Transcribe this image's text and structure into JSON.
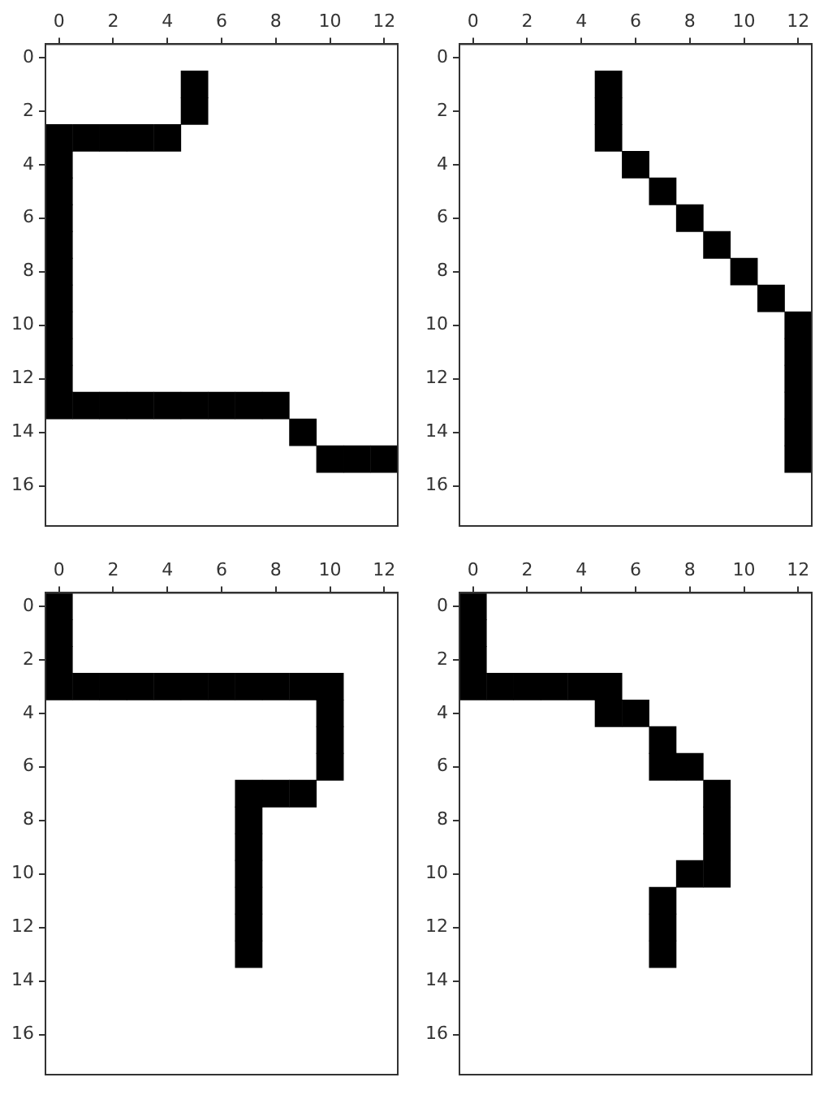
{
  "chart_data": [
    {
      "type": "scatter",
      "marker": "square",
      "color": "#000000",
      "xlim": [
        -0.5,
        12.5
      ],
      "ylim": [
        17.5,
        -0.5
      ],
      "xticks": [
        0,
        2,
        4,
        6,
        8,
        10,
        12
      ],
      "yticks": [
        0,
        2,
        4,
        6,
        8,
        10,
        12,
        14,
        16
      ],
      "x": [
        5,
        5,
        0,
        1,
        2,
        3,
        4,
        0,
        0,
        0,
        0,
        0,
        0,
        0,
        0,
        0,
        0,
        1,
        2,
        3,
        4,
        5,
        6,
        7,
        8,
        9,
        10,
        11,
        12
      ],
      "values": [
        1,
        2,
        3,
        3,
        3,
        3,
        3,
        4,
        5,
        6,
        7,
        8,
        9,
        10,
        11,
        12,
        13,
        13,
        13,
        13,
        13,
        13,
        13,
        13,
        13,
        14,
        15,
        15,
        15
      ]
    },
    {
      "type": "scatter",
      "marker": "square",
      "color": "#000000",
      "xlim": [
        -0.5,
        12.5
      ],
      "ylim": [
        17.5,
        -0.5
      ],
      "xticks": [
        0,
        2,
        4,
        6,
        8,
        10,
        12
      ],
      "yticks": [
        0,
        2,
        4,
        6,
        8,
        10,
        12,
        14,
        16
      ],
      "x": [
        5,
        5,
        5,
        6,
        7,
        8,
        9,
        10,
        11,
        12,
        12,
        12,
        12,
        12,
        12
      ],
      "values": [
        1,
        2,
        3,
        4,
        5,
        6,
        7,
        8,
        9,
        10,
        11,
        12,
        13,
        14,
        15
      ]
    },
    {
      "type": "scatter",
      "marker": "square",
      "color": "#000000",
      "xlim": [
        -0.5,
        12.5
      ],
      "ylim": [
        17.5,
        -0.5
      ],
      "xticks": [
        0,
        2,
        4,
        6,
        8,
        10,
        12
      ],
      "yticks": [
        0,
        2,
        4,
        6,
        8,
        10,
        12,
        14,
        16
      ],
      "x": [
        0,
        0,
        0,
        0,
        1,
        2,
        3,
        4,
        5,
        6,
        7,
        8,
        9,
        10,
        10,
        10,
        10,
        7,
        8,
        9,
        7,
        7,
        7,
        7,
        7,
        7
      ],
      "values": [
        0,
        1,
        2,
        3,
        3,
        3,
        3,
        3,
        3,
        3,
        3,
        3,
        3,
        3,
        4,
        5,
        6,
        7,
        7,
        7,
        8,
        9,
        10,
        11,
        12,
        13
      ]
    },
    {
      "type": "scatter",
      "marker": "square",
      "color": "#000000",
      "xlim": [
        -0.5,
        12.5
      ],
      "ylim": [
        17.5,
        -0.5
      ],
      "xticks": [
        0,
        2,
        4,
        6,
        8,
        10,
        12
      ],
      "yticks": [
        0,
        2,
        4,
        6,
        8,
        10,
        12,
        14,
        16
      ],
      "x": [
        0,
        0,
        0,
        0,
        1,
        2,
        3,
        4,
        5,
        5,
        6,
        7,
        7,
        8,
        9,
        9,
        9,
        8,
        9,
        7,
        7,
        7
      ],
      "values": [
        0,
        1,
        2,
        3,
        3,
        3,
        3,
        3,
        3,
        4,
        4,
        5,
        6,
        6,
        7,
        8,
        9,
        10,
        10,
        11,
        12,
        13
      ]
    }
  ]
}
